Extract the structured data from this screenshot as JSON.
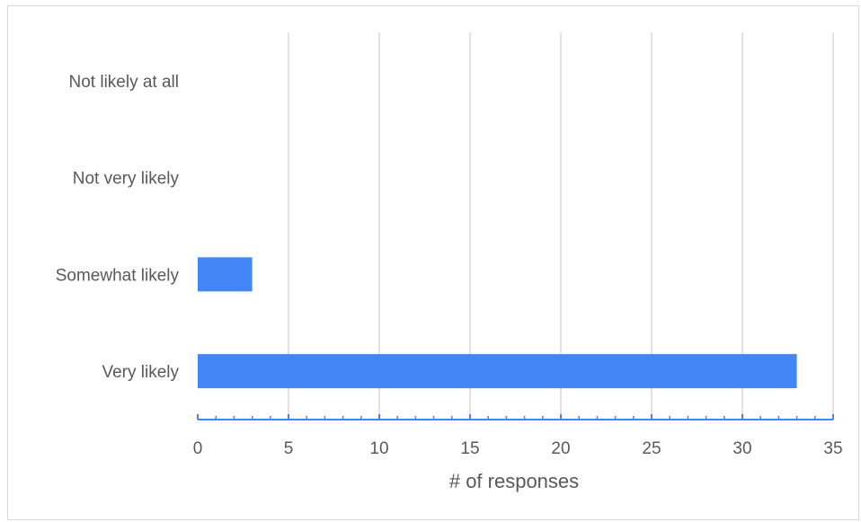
{
  "chart_data": {
    "type": "bar",
    "orientation": "horizontal",
    "categories": [
      "Not likely at all",
      "Not very likely",
      "Somewhat likely",
      "Very likely"
    ],
    "values": [
      0,
      0,
      3,
      33
    ],
    "xlabel": "# of responses",
    "ylabel": "",
    "xlim": [
      0,
      35
    ],
    "x_ticks": [
      "0",
      "5",
      "10",
      "15",
      "20",
      "25",
      "30",
      "35"
    ],
    "grid": "vertical",
    "legend": "none",
    "colors": {
      "bar": "#4285f4",
      "axis": "#4285f4",
      "grid": "#d9d9d9",
      "text": "#595959"
    }
  }
}
